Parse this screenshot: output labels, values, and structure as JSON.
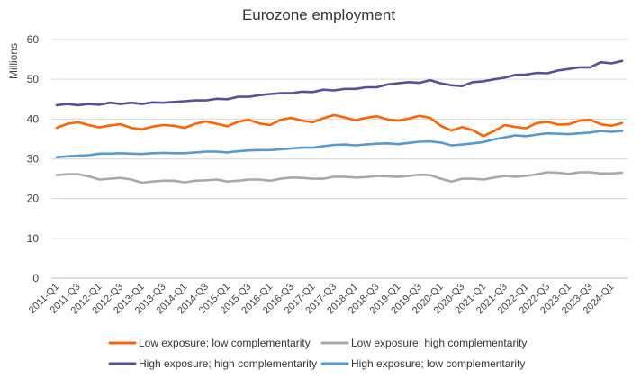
{
  "chart_data": {
    "type": "line",
    "title": "Eurozone employment",
    "ylabel": "Millions",
    "xlabel": "",
    "ylim": [
      0,
      60
    ],
    "yticks": [
      0,
      10,
      20,
      30,
      40,
      50,
      60
    ],
    "grid": true,
    "legend_position": "bottom",
    "x": [
      "2011-Q1",
      "2011-Q2",
      "2011-Q3",
      "2011-Q4",
      "2012-Q1",
      "2012-Q2",
      "2012-Q3",
      "2012-Q4",
      "2013-Q1",
      "2013-Q2",
      "2013-Q3",
      "2013-Q4",
      "2014-Q1",
      "2014-Q2",
      "2014-Q3",
      "2014-Q4",
      "2015-Q1",
      "2015-Q2",
      "2015-Q3",
      "2015-Q4",
      "2016-Q1",
      "2016-Q2",
      "2016-Q3",
      "2016-Q4",
      "2017-Q1",
      "2017-Q2",
      "2017-Q3",
      "2017-Q4",
      "2018-Q1",
      "2018-Q2",
      "2018-Q3",
      "2018-Q4",
      "2019-Q1",
      "2019-Q2",
      "2019-Q3",
      "2019-Q4",
      "2020-Q1",
      "2020-Q2",
      "2020-Q3",
      "2020-Q4",
      "2021-Q1",
      "2021-Q2",
      "2021-Q3",
      "2021-Q4",
      "2022-Q1",
      "2022-Q2",
      "2022-Q3",
      "2022-Q4",
      "2023-Q1",
      "2023-Q2",
      "2023-Q3",
      "2023-Q4",
      "2024-Q1",
      "2024-Q2"
    ],
    "xtick_labels": [
      "2011-Q1",
      "2011-Q3",
      "2012-Q1",
      "2012-Q3",
      "2013-Q1",
      "2013-Q3",
      "2014-Q1",
      "2014-Q3",
      "2015-Q1",
      "2015-Q3",
      "2016-Q1",
      "2016-Q3",
      "2017-Q1",
      "2017-Q3",
      "2018-Q1",
      "2018-Q3",
      "2019-Q1",
      "2019-Q3",
      "2020-Q1",
      "2020-Q3",
      "2021-Q1",
      "2021-Q3",
      "2022-Q1",
      "2022-Q3",
      "2023-Q1",
      "2023-Q3",
      "2024-Q1"
    ],
    "series": [
      {
        "name": "Low exposure; low complementarity",
        "color": "#FF6200",
        "values": [
          37.8,
          38.8,
          39.2,
          38.5,
          37.9,
          38.4,
          38.7,
          37.8,
          37.4,
          38.1,
          38.5,
          38.3,
          37.8,
          38.8,
          39.4,
          38.8,
          38.2,
          39.3,
          39.8,
          38.9,
          38.5,
          39.8,
          40.3,
          39.6,
          39.2,
          40.2,
          41.0,
          40.4,
          39.7,
          40.3,
          40.7,
          39.9,
          39.6,
          40.1,
          40.8,
          40.3,
          38.3,
          37.1,
          38.0,
          37.2,
          35.7,
          37.0,
          38.5,
          38.0,
          37.7,
          39.0,
          39.3,
          38.6,
          38.7,
          39.6,
          39.8,
          38.7,
          38.3,
          39.0
        ]
      },
      {
        "name": "Low exposure; high complementarity",
        "color": "#A8A8A8",
        "values": [
          25.9,
          26.1,
          26.1,
          25.6,
          24.8,
          25.0,
          25.2,
          24.8,
          24.0,
          24.3,
          24.5,
          24.5,
          24.1,
          24.5,
          24.6,
          24.8,
          24.3,
          24.5,
          24.8,
          24.8,
          24.5,
          25.0,
          25.3,
          25.2,
          25.0,
          25.0,
          25.5,
          25.5,
          25.3,
          25.4,
          25.7,
          25.6,
          25.5,
          25.7,
          26.0,
          25.9,
          25.0,
          24.3,
          25.0,
          25.0,
          24.8,
          25.3,
          25.7,
          25.5,
          25.7,
          26.1,
          26.6,
          26.5,
          26.2,
          26.6,
          26.6,
          26.3,
          26.3,
          26.5
        ]
      },
      {
        "name": "High exposure; high complementarity",
        "color": "#525199",
        "values": [
          43.5,
          43.8,
          43.5,
          43.8,
          43.6,
          44.1,
          43.8,
          44.1,
          43.8,
          44.2,
          44.1,
          44.3,
          44.5,
          44.7,
          44.7,
          45.1,
          45.0,
          45.6,
          45.6,
          46.0,
          46.3,
          46.5,
          46.5,
          46.9,
          46.8,
          47.4,
          47.2,
          47.6,
          47.6,
          48.0,
          48.0,
          48.7,
          49.0,
          49.3,
          49.1,
          49.8,
          49.0,
          48.5,
          48.3,
          49.3,
          49.5,
          50.0,
          50.4,
          51.1,
          51.2,
          51.6,
          51.5,
          52.2,
          52.6,
          53.0,
          53.0,
          54.3,
          54.0,
          54.6
        ]
      },
      {
        "name": "High exposure; low complementarity",
        "color": "#559BD2",
        "values": [
          30.4,
          30.6,
          30.8,
          30.9,
          31.3,
          31.3,
          31.4,
          31.3,
          31.2,
          31.4,
          31.5,
          31.4,
          31.4,
          31.6,
          31.8,
          31.8,
          31.6,
          31.9,
          32.1,
          32.2,
          32.2,
          32.4,
          32.6,
          32.8,
          32.8,
          33.2,
          33.5,
          33.6,
          33.4,
          33.6,
          33.8,
          33.9,
          33.7,
          34.0,
          34.3,
          34.4,
          34.1,
          33.4,
          33.6,
          33.9,
          34.2,
          34.9,
          35.4,
          35.9,
          35.7,
          36.1,
          36.4,
          36.3,
          36.2,
          36.4,
          36.6,
          37.0,
          36.8,
          37.0
        ]
      }
    ]
  }
}
